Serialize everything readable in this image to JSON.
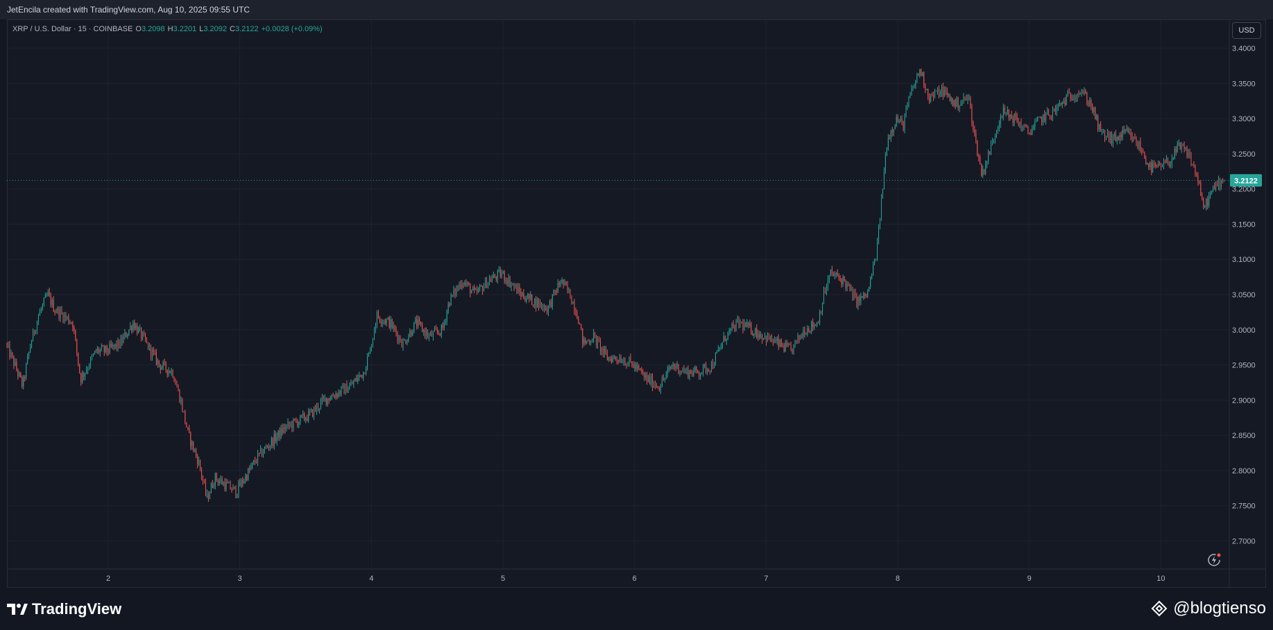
{
  "credit": "JetEncila created with TradingView.com, Aug 10, 2025 09:55 UTC",
  "legend": {
    "symbol": "XRP / U.S. Dollar · 15 · COINBASE",
    "o_label": "O",
    "o": "3.2098",
    "h_label": "H",
    "h": "3.2201",
    "l_label": "L",
    "l": "3.2092",
    "c_label": "C",
    "c": "3.2122",
    "change": "+0.0028 (+0.09%)"
  },
  "currency_button": "USD",
  "brand": "TradingView",
  "watermark_handle": "@blogtienso",
  "icons": {
    "reload": "reload-lightning-icon",
    "brand": "tradingview-logo-icon",
    "handle": "binance-diamond-icon"
  },
  "colors": {
    "up": "#26a69a",
    "down": "#ef5350",
    "background": "#131722",
    "grid": "#1e2230",
    "last_price": "#26a69a"
  },
  "chart_data": {
    "type": "candlestick",
    "title": "XRP / U.S. Dollar · 15 · COINBASE",
    "interval": "15",
    "x_ticks": [
      "2",
      "3",
      "4",
      "5",
      "6",
      "7",
      "8",
      "9",
      "10"
    ],
    "x_range": [
      1.23,
      10.52
    ],
    "y_ticks": [
      "3.4000",
      "3.3500",
      "3.3000",
      "3.2500",
      "3.2000",
      "3.1500",
      "3.1000",
      "3.0500",
      "3.0000",
      "2.9500",
      "2.9000",
      "2.8500",
      "2.8000",
      "2.7500",
      "2.7000"
    ],
    "y_range": [
      2.66,
      3.44
    ],
    "last_price": 3.2122,
    "last_price_label": "3.2122",
    "grid": true,
    "path_points": [
      [
        1.23,
        2.98
      ],
      [
        1.3,
        2.95
      ],
      [
        1.36,
        2.92
      ],
      [
        1.42,
        2.98
      ],
      [
        1.48,
        3.02
      ],
      [
        1.55,
        3.05
      ],
      [
        1.6,
        3.03
      ],
      [
        1.67,
        3.02
      ],
      [
        1.74,
        3.01
      ],
      [
        1.8,
        2.93
      ],
      [
        1.86,
        2.95
      ],
      [
        1.92,
        2.97
      ],
      [
        2.0,
        2.97
      ],
      [
        2.1,
        2.98
      ],
      [
        2.2,
        3.01
      ],
      [
        2.3,
        2.98
      ],
      [
        2.4,
        2.95
      ],
      [
        2.5,
        2.94
      ],
      [
        2.56,
        2.9
      ],
      [
        2.62,
        2.85
      ],
      [
        2.7,
        2.81
      ],
      [
        2.76,
        2.76
      ],
      [
        2.82,
        2.79
      ],
      [
        2.9,
        2.78
      ],
      [
        2.98,
        2.77
      ],
      [
        3.05,
        2.79
      ],
      [
        3.15,
        2.82
      ],
      [
        3.25,
        2.84
      ],
      [
        3.35,
        2.86
      ],
      [
        3.45,
        2.87
      ],
      [
        3.55,
        2.88
      ],
      [
        3.65,
        2.9
      ],
      [
        3.75,
        2.91
      ],
      [
        3.85,
        2.92
      ],
      [
        3.95,
        2.94
      ],
      [
        4.0,
        2.97
      ],
      [
        4.05,
        3.02
      ],
      [
        4.15,
        3.01
      ],
      [
        4.25,
        2.98
      ],
      [
        4.35,
        3.01
      ],
      [
        4.45,
        2.99
      ],
      [
        4.55,
        3.0
      ],
      [
        4.6,
        3.04
      ],
      [
        4.7,
        3.07
      ],
      [
        4.8,
        3.05
      ],
      [
        4.9,
        3.07
      ],
      [
        5.0,
        3.08
      ],
      [
        5.05,
        3.07
      ],
      [
        5.15,
        3.05
      ],
      [
        5.25,
        3.04
      ],
      [
        5.35,
        3.03
      ],
      [
        5.45,
        3.07
      ],
      [
        5.52,
        3.05
      ],
      [
        5.58,
        3.02
      ],
      [
        5.62,
        2.98
      ],
      [
        5.7,
        2.99
      ],
      [
        5.8,
        2.96
      ],
      [
        5.9,
        2.96
      ],
      [
        6.0,
        2.95
      ],
      [
        6.1,
        2.93
      ],
      [
        6.2,
        2.92
      ],
      [
        6.3,
        2.95
      ],
      [
        6.4,
        2.94
      ],
      [
        6.5,
        2.94
      ],
      [
        6.6,
        2.95
      ],
      [
        6.7,
        2.99
      ],
      [
        6.8,
        3.01
      ],
      [
        6.9,
        3.0
      ],
      [
        7.0,
        2.99
      ],
      [
        7.1,
        2.98
      ],
      [
        7.2,
        2.97
      ],
      [
        7.3,
        3.0
      ],
      [
        7.4,
        3.01
      ],
      [
        7.45,
        3.05
      ],
      [
        7.5,
        3.08
      ],
      [
        7.6,
        3.07
      ],
      [
        7.7,
        3.04
      ],
      [
        7.78,
        3.05
      ],
      [
        7.85,
        3.11
      ],
      [
        7.9,
        3.21
      ],
      [
        7.93,
        3.27
      ],
      [
        8.0,
        3.3
      ],
      [
        8.05,
        3.29
      ],
      [
        8.1,
        3.33
      ],
      [
        8.18,
        3.37
      ],
      [
        8.25,
        3.33
      ],
      [
        8.35,
        3.34
      ],
      [
        8.45,
        3.32
      ],
      [
        8.55,
        3.33
      ],
      [
        8.6,
        3.27
      ],
      [
        8.65,
        3.22
      ],
      [
        8.72,
        3.26
      ],
      [
        8.8,
        3.31
      ],
      [
        8.9,
        3.3
      ],
      [
        9.0,
        3.28
      ],
      [
        9.1,
        3.3
      ],
      [
        9.2,
        3.31
      ],
      [
        9.3,
        3.33
      ],
      [
        9.4,
        3.34
      ],
      [
        9.48,
        3.32
      ],
      [
        9.55,
        3.28
      ],
      [
        9.65,
        3.27
      ],
      [
        9.75,
        3.28
      ],
      [
        9.85,
        3.26
      ],
      [
        9.93,
        3.23
      ],
      [
        10.0,
        3.23
      ],
      [
        10.08,
        3.24
      ],
      [
        10.15,
        3.26
      ],
      [
        10.22,
        3.25
      ],
      [
        10.3,
        3.21
      ],
      [
        10.33,
        3.17
      ],
      [
        10.38,
        3.19
      ],
      [
        10.45,
        3.21
      ],
      [
        10.48,
        3.21
      ]
    ]
  }
}
